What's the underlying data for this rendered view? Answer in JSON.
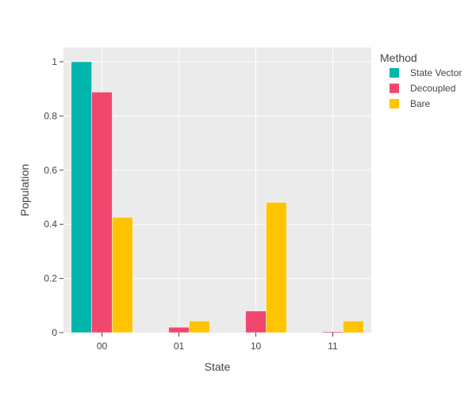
{
  "chart_data": {
    "type": "bar",
    "categories": [
      "00",
      "01",
      "10",
      "11"
    ],
    "series": [
      {
        "name": "State Vector",
        "values": [
          1.0,
          0.0,
          0.0,
          0.0
        ],
        "color": "#00B5AC"
      },
      {
        "name": "Decoupled",
        "values": [
          0.888,
          0.02,
          0.08,
          0.004
        ],
        "color": "#F0476F"
      },
      {
        "name": "Bare",
        "values": [
          0.426,
          0.043,
          0.481,
          0.043
        ],
        "color": "#FFC300"
      }
    ],
    "xlabel": "State",
    "ylabel": "Population",
    "ylim": [
      0,
      1.05
    ],
    "yticks": [
      0,
      0.2,
      0.4,
      0.6,
      0.8,
      1
    ],
    "ytick_labels": [
      "0",
      "0.2",
      "0.4",
      "0.6",
      "0.8",
      "1"
    ],
    "legend": {
      "title": "Method",
      "placement": "right"
    },
    "grid": true
  }
}
